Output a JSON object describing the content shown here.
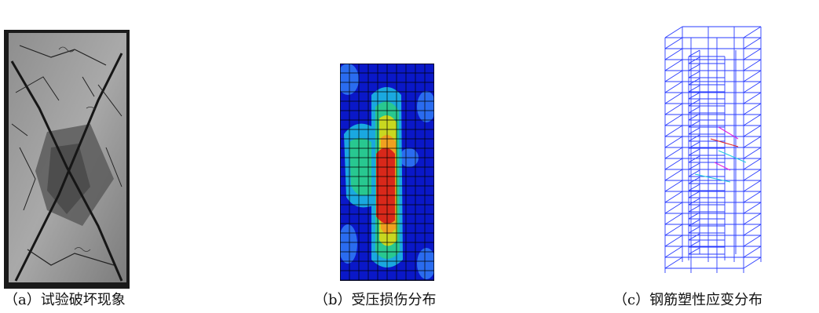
{
  "figure": {
    "panels": [
      {
        "id": "a",
        "caption": "（a）试验破坏现象",
        "content": "photo-of-failed-concrete-specimen"
      },
      {
        "id": "b",
        "caption": "（b）受压损伤分布",
        "content": "compressive-damage-contour-map"
      },
      {
        "id": "c",
        "caption": "（c）钢筋塑性应变分布",
        "content": "reinforcement-plastic-strain-wireframe"
      }
    ],
    "colors": {
      "contour_low": "#0a18c8",
      "contour_mid": "#28c890",
      "contour_high": "#d8281a",
      "wire": "#2a3cff"
    }
  }
}
